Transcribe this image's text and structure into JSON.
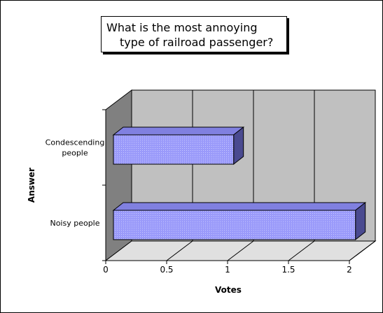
{
  "chart_data": {
    "type": "bar",
    "orientation": "horizontal",
    "three_d": true,
    "title_lines": [
      "What is the most annoying",
      "type of railroad passenger?"
    ],
    "categories": [
      [
        "Condescending",
        "people"
      ],
      [
        "Noisy people"
      ]
    ],
    "values": [
      1.05,
      2.05
    ],
    "xlabel": "Votes",
    "ylabel": "Answer",
    "xlim": [
      0,
      2
    ],
    "xticks": [
      "0",
      "0.5",
      "1",
      "1.5",
      "2"
    ],
    "grid": true,
    "legend": "none",
    "colors": {
      "bar_face": "#9a9afa",
      "bar_top": "#8080e0",
      "bar_side": "#4a4a90",
      "wall": "#c0c0c0",
      "floor": "#e0e0e0",
      "left_wall": "#808080"
    }
  }
}
